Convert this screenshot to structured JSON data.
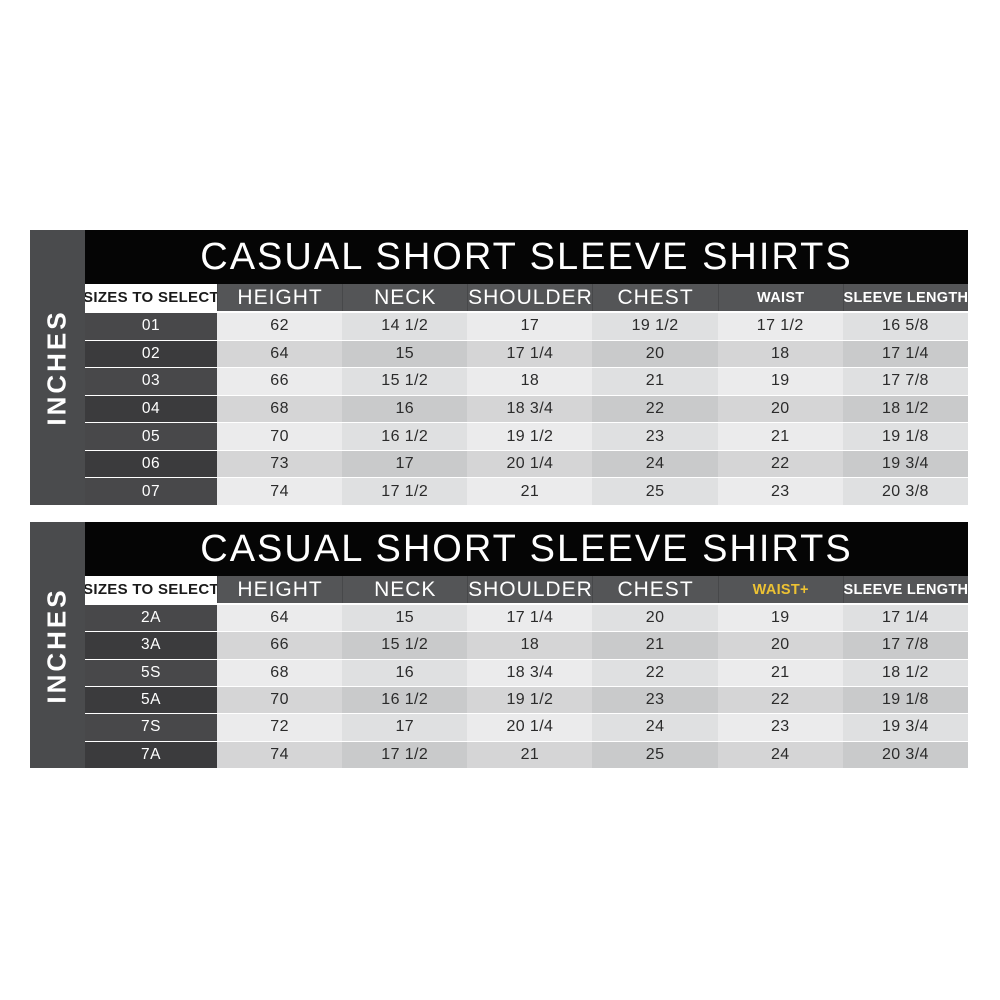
{
  "colors": {
    "accent_waist_plus": "#edc233"
  },
  "chart_data": [
    {
      "type": "table",
      "title": "CASUAL SHORT SLEEVE SHIRTS",
      "unit_label": "INCHES",
      "columns": [
        "SIZES TO SELECT",
        "HEIGHT",
        "NECK",
        "SHOULDER",
        "CHEST",
        "WAIST",
        "SLEEVE LENGTH"
      ],
      "rows": [
        [
          "01",
          "62",
          "14 1/2",
          "17",
          "19 1/2",
          "17 1/2",
          "16 5/8"
        ],
        [
          "02",
          "64",
          "15",
          "17 1/4",
          "20",
          "18",
          "17 1/4"
        ],
        [
          "03",
          "66",
          "15 1/2",
          "18",
          "21",
          "19",
          "17 7/8"
        ],
        [
          "04",
          "68",
          "16",
          "18 3/4",
          "22",
          "20",
          "18 1/2"
        ],
        [
          "05",
          "70",
          "16 1/2",
          "19 1/2",
          "23",
          "21",
          "19 1/8"
        ],
        [
          "06",
          "73",
          "17",
          "20 1/4",
          "24",
          "22",
          "19 3/4"
        ],
        [
          "07",
          "74",
          "17 1/2",
          "21",
          "25",
          "23",
          "20 3/8"
        ]
      ]
    },
    {
      "type": "table",
      "title": "CASUAL SHORT SLEEVE SHIRTS",
      "unit_label": "INCHES",
      "columns": [
        "SIZES TO SELECT",
        "HEIGHT",
        "NECK",
        "SHOULDER",
        "CHEST",
        "WAIST+",
        "SLEEVE LENGTH"
      ],
      "rows": [
        [
          "2A",
          "64",
          "15",
          "17 1/4",
          "20",
          "19",
          "17 1/4"
        ],
        [
          "3A",
          "66",
          "15 1/2",
          "18",
          "21",
          "20",
          "17 7/8"
        ],
        [
          "5S",
          "68",
          "16",
          "18 3/4",
          "22",
          "21",
          "18 1/2"
        ],
        [
          "5A",
          "70",
          "16 1/2",
          "19 1/2",
          "23",
          "22",
          "19 1/8"
        ],
        [
          "7S",
          "72",
          "17",
          "20 1/4",
          "24",
          "23",
          "19 3/4"
        ],
        [
          "7A",
          "74",
          "17 1/2",
          "21",
          "25",
          "24",
          "20 3/4"
        ]
      ]
    }
  ]
}
